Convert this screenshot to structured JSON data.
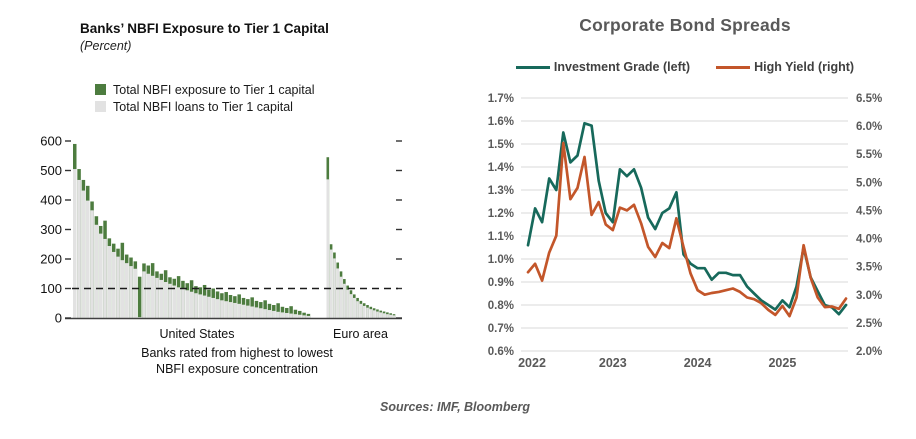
{
  "sources": "Sources: IMF, Bloomberg",
  "palette": {
    "bar_green": "#4d7c3f",
    "bar_gray": "#e2e2e2",
    "ig_line": "#17695b",
    "hy_line": "#c3562a",
    "title_gray": "#595959",
    "axis_label_gray": "#595959",
    "gridline": "#d9d9d9",
    "reference_line": "#1a1a1a",
    "axis_line": "#404040"
  },
  "chart_data": [
    {
      "type": "bar",
      "title": "Banks’ NBFI Exposure to Tier 1 Capital",
      "subtitle": "(Percent)",
      "ylim": [
        0,
        600
      ],
      "y_ticks": [
        0,
        100,
        200,
        300,
        400,
        500,
        600
      ],
      "reference_line_value": 100,
      "grid": false,
      "legend": [
        {
          "label": "Total NBFI exposure to Tier 1 capital",
          "color": "#4d7c3f"
        },
        {
          "label": "Total NBFI loans to Tier 1 capital",
          "color": "#e2e2e2"
        }
      ],
      "caption": [
        "Banks rated from highest to lowest",
        "NBFI exposure concentration"
      ],
      "groups": [
        {
          "label": "United States",
          "exposure": [
            590,
            505,
            468,
            448,
            395,
            345,
            312,
            330,
            270,
            252,
            235,
            255,
            215,
            205,
            192,
            140,
            185,
            178,
            186,
            158,
            150,
            162,
            138,
            133,
            142,
            126,
            118,
            128,
            108,
            104,
            112,
            96,
            100,
            90,
            84,
            88,
            78,
            74,
            80,
            68,
            64,
            70,
            58,
            54,
            60,
            48,
            44,
            50,
            38,
            34,
            40,
            28,
            24,
            18,
            14
          ],
          "loans": [
            505,
            468,
            432,
            398,
            365,
            316,
            286,
            268,
            244,
            224,
            208,
            196,
            186,
            176,
            167,
            3,
            158,
            150,
            143,
            136,
            129,
            122,
            116,
            110,
            104,
            99,
            94,
            89,
            84,
            80,
            76,
            72,
            68,
            64,
            60,
            57,
            54,
            51,
            48,
            45,
            42,
            39,
            36,
            33,
            30,
            27,
            24,
            21,
            19,
            17,
            15,
            13,
            11,
            9,
            7
          ]
        },
        {
          "label": "Euro area",
          "exposure": [
            545,
            250,
            222,
            188,
            158,
            132,
            110,
            94,
            80,
            68,
            58,
            50,
            44,
            38,
            33,
            29,
            25,
            22,
            19,
            16,
            13
          ],
          "loans": [
            470,
            232,
            202,
            168,
            140,
            116,
            96,
            81,
            68,
            57,
            48,
            41,
            35,
            30,
            26,
            22,
            19,
            16,
            13,
            11,
            9
          ]
        }
      ]
    },
    {
      "type": "line",
      "title": "Corporate Bond Spreads",
      "x_monthly_start": "2022-01",
      "x_tick_labels": [
        "2022",
        "2023",
        "2024",
        "2025"
      ],
      "grid": true,
      "legend_position": "top",
      "left_axis": {
        "range": [
          0.6,
          1.7
        ],
        "tick_labels": [
          "1.7%",
          "1.6%",
          "1.5%",
          "1.4%",
          "1.3%",
          "1.2%",
          "1.1%",
          "1.0%",
          "0.9%",
          "0.8%",
          "0.7%",
          "0.6%"
        ]
      },
      "right_axis": {
        "range": [
          2.0,
          6.5
        ],
        "tick_labels": [
          "6.5%",
          "6.0%",
          "5.5%",
          "5.0%",
          "4.5%",
          "4.0%",
          "3.5%",
          "3.0%",
          "2.5%",
          "2.0%"
        ]
      },
      "legend": [
        {
          "label": "Investment Grade (left)",
          "color": "#17695b"
        },
        {
          "label": "High Yield (right)",
          "color": "#c3562a"
        }
      ],
      "series": [
        {
          "name": "Investment Grade (left)",
          "axis": "left",
          "values": [
            1.06,
            1.22,
            1.16,
            1.35,
            1.3,
            1.55,
            1.42,
            1.45,
            1.59,
            1.58,
            1.34,
            1.2,
            1.16,
            1.39,
            1.36,
            1.39,
            1.31,
            1.18,
            1.13,
            1.2,
            1.22,
            1.29,
            1.02,
            0.98,
            0.96,
            0.96,
            0.91,
            0.94,
            0.94,
            0.93,
            0.93,
            0.88,
            0.85,
            0.82,
            0.8,
            0.78,
            0.82,
            0.79,
            0.88,
            1.05,
            0.92,
            0.86,
            0.8,
            0.79,
            0.76,
            0.8
          ]
        },
        {
          "name": "High Yield (right)",
          "axis": "right",
          "values": [
            3.4,
            3.55,
            3.25,
            3.75,
            4.05,
            5.7,
            4.7,
            4.9,
            5.45,
            4.42,
            4.65,
            4.25,
            4.15,
            4.55,
            4.5,
            4.6,
            4.27,
            3.85,
            3.67,
            3.92,
            3.83,
            4.36,
            3.85,
            3.38,
            3.08,
            3.0,
            3.03,
            3.05,
            3.08,
            3.11,
            3.05,
            2.95,
            2.92,
            2.85,
            2.73,
            2.64,
            2.8,
            2.62,
            2.95,
            3.88,
            3.3,
            2.95,
            2.78,
            2.79,
            2.75,
            2.93
          ]
        }
      ]
    }
  ]
}
